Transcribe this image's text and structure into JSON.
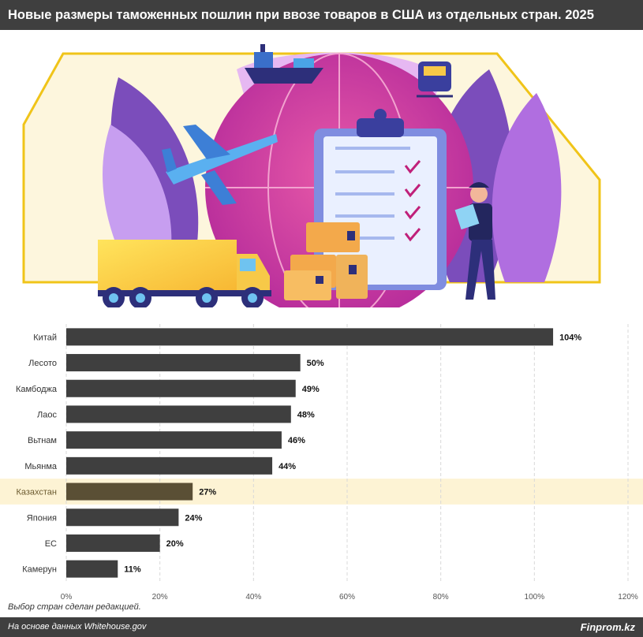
{
  "header": {
    "title": "Новые размеры таможенных пошлин при ввозе товаров в США из отдельных стран. 2025"
  },
  "colors": {
    "bar": "#3f3f3f",
    "bar_highlight": "#5a4f35",
    "highlight_band": "#fdf3d4",
    "header_bg": "#3f3f3f"
  },
  "chart_data": {
    "type": "bar",
    "orientation": "horizontal",
    "categories": [
      "Китай",
      "Лесото",
      "Камбоджа",
      "Лаос",
      "Вьтнам",
      "Мьянма",
      "Казахстан",
      "Япония",
      "ЕС",
      "Камерун"
    ],
    "values": [
      104,
      50,
      49,
      48,
      46,
      44,
      27,
      24,
      20,
      11
    ],
    "data_labels": [
      "104%",
      "50%",
      "49%",
      "48%",
      "46%",
      "44%",
      "27%",
      "24%",
      "20%",
      "11%"
    ],
    "highlight": "Казахстан",
    "xlim": [
      0,
      120
    ],
    "xticks": [
      0,
      20,
      40,
      60,
      80,
      100,
      120
    ],
    "xtick_labels": [
      "0%",
      "20%",
      "40%",
      "60%",
      "80%",
      "100%",
      "120%"
    ],
    "grid": true,
    "grid_style": "dashed vertical"
  },
  "note": "Выбор стран сделан редакцией.",
  "footer": {
    "source": "На основе данных Whitehouse.gov",
    "brand": "Finprom.kz"
  }
}
